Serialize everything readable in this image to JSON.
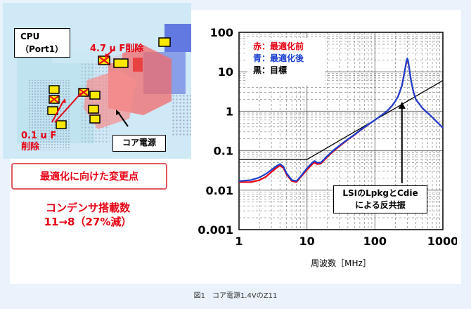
{
  "layout_panel": {
    "cpu_label": "CPU",
    "port_label": "（Port1）",
    "cap_47_label": "4.7 u F削除",
    "cap_01_label_1": "0.1 u F",
    "cap_01_label_2": "削除",
    "core_power_label": "コア電源"
  },
  "change_box_label": "最適化に向けた変更点",
  "summary": {
    "line1": "コンデンサ搭載数",
    "line2": "11→8（27%減）"
  },
  "legend": {
    "red": "赤：最適化前",
    "blue": "青：最適化後",
    "black": "黒：目標",
    "colors": {
      "red": "#e60012",
      "blue": "#1a3fd0",
      "black": "#000000"
    }
  },
  "annotation": {
    "line1": "LSIのLpkgとCdie",
    "line2": "による反共振"
  },
  "caption": "図1　コア電源1.4VのZ11",
  "chart_data": {
    "type": "line",
    "x_scale": "log",
    "y_scale": "log",
    "xlabel": "周波数［MHz］",
    "ylabel": "",
    "xlim": [
      1,
      1000
    ],
    "ylim": [
      0.001,
      100
    ],
    "x_tick_labels": [
      "1",
      "10",
      "100",
      "1000"
    ],
    "y_tick_labels": [
      "100",
      "10",
      "1",
      "0.1",
      "0.01",
      "0.001"
    ],
    "grid": true,
    "series": [
      {
        "name": "赤：最適化前",
        "color": "#e60012",
        "x": [
          1,
          1.5,
          2,
          2.5,
          3,
          3.5,
          4,
          4.5,
          5,
          6,
          7,
          8,
          10,
          12,
          13,
          14,
          16,
          20,
          25,
          30,
          40,
          50,
          60,
          70,
          80,
          100,
          120,
          150,
          180,
          200,
          220,
          250,
          270,
          290,
          300,
          310,
          320,
          340,
          370,
          400,
          500,
          700,
          1000
        ],
        "y": [
          0.016,
          0.016,
          0.018,
          0.022,
          0.029,
          0.036,
          0.042,
          0.037,
          0.025,
          0.017,
          0.016,
          0.021,
          0.033,
          0.046,
          0.05,
          0.046,
          0.047,
          0.07,
          0.1,
          0.13,
          0.19,
          0.25,
          0.32,
          0.39,
          0.46,
          0.6,
          0.75,
          1.0,
          1.4,
          1.8,
          2.4,
          4.5,
          9,
          17,
          20,
          17,
          12,
          6,
          3,
          2,
          1.2,
          0.7,
          0.38
        ]
      },
      {
        "name": "青：最適化後",
        "color": "#1a3fd0",
        "x": [
          1,
          1.5,
          2,
          2.5,
          3,
          3.5,
          4,
          4.5,
          5,
          6,
          7,
          8,
          10,
          12,
          13,
          14,
          16,
          20,
          25,
          30,
          40,
          50,
          60,
          70,
          80,
          100,
          120,
          150,
          180,
          200,
          220,
          250,
          270,
          290,
          300,
          310,
          320,
          340,
          370,
          400,
          500,
          700,
          1000
        ],
        "y": [
          0.017,
          0.018,
          0.021,
          0.026,
          0.033,
          0.04,
          0.046,
          0.04,
          0.027,
          0.018,
          0.017,
          0.022,
          0.036,
          0.05,
          0.055,
          0.05,
          0.05,
          0.074,
          0.105,
          0.135,
          0.195,
          0.255,
          0.325,
          0.395,
          0.465,
          0.6,
          0.75,
          1.0,
          1.4,
          1.8,
          2.4,
          4.5,
          9,
          18,
          22,
          18,
          12,
          6,
          3,
          2,
          1.2,
          0.7,
          0.38
        ]
      },
      {
        "name": "黒：目標",
        "color": "#000000",
        "x": [
          1,
          10,
          15,
          100,
          1000
        ],
        "y": [
          0.06,
          0.06,
          0.09,
          0.6,
          6
        ]
      }
    ]
  }
}
